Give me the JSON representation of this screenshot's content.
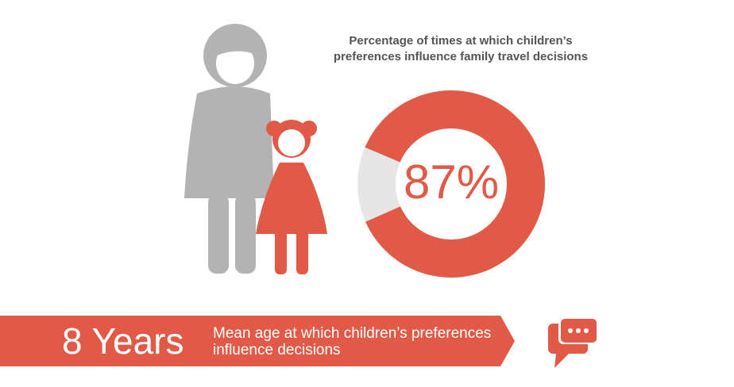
{
  "chart_data": {
    "type": "donut",
    "title": "Percentage of times at which children’s preferences influence family travel decisions",
    "categories": [
      null,
      null
    ],
    "values": [
      87,
      13
    ],
    "value_labels": [
      "87%",
      null
    ],
    "colors": [
      "#e05a47",
      "#e6e6e6"
    ]
  },
  "banner": {
    "headline": "8 Years",
    "caption": "Mean age at which children’s preferences influence decisions"
  }
}
